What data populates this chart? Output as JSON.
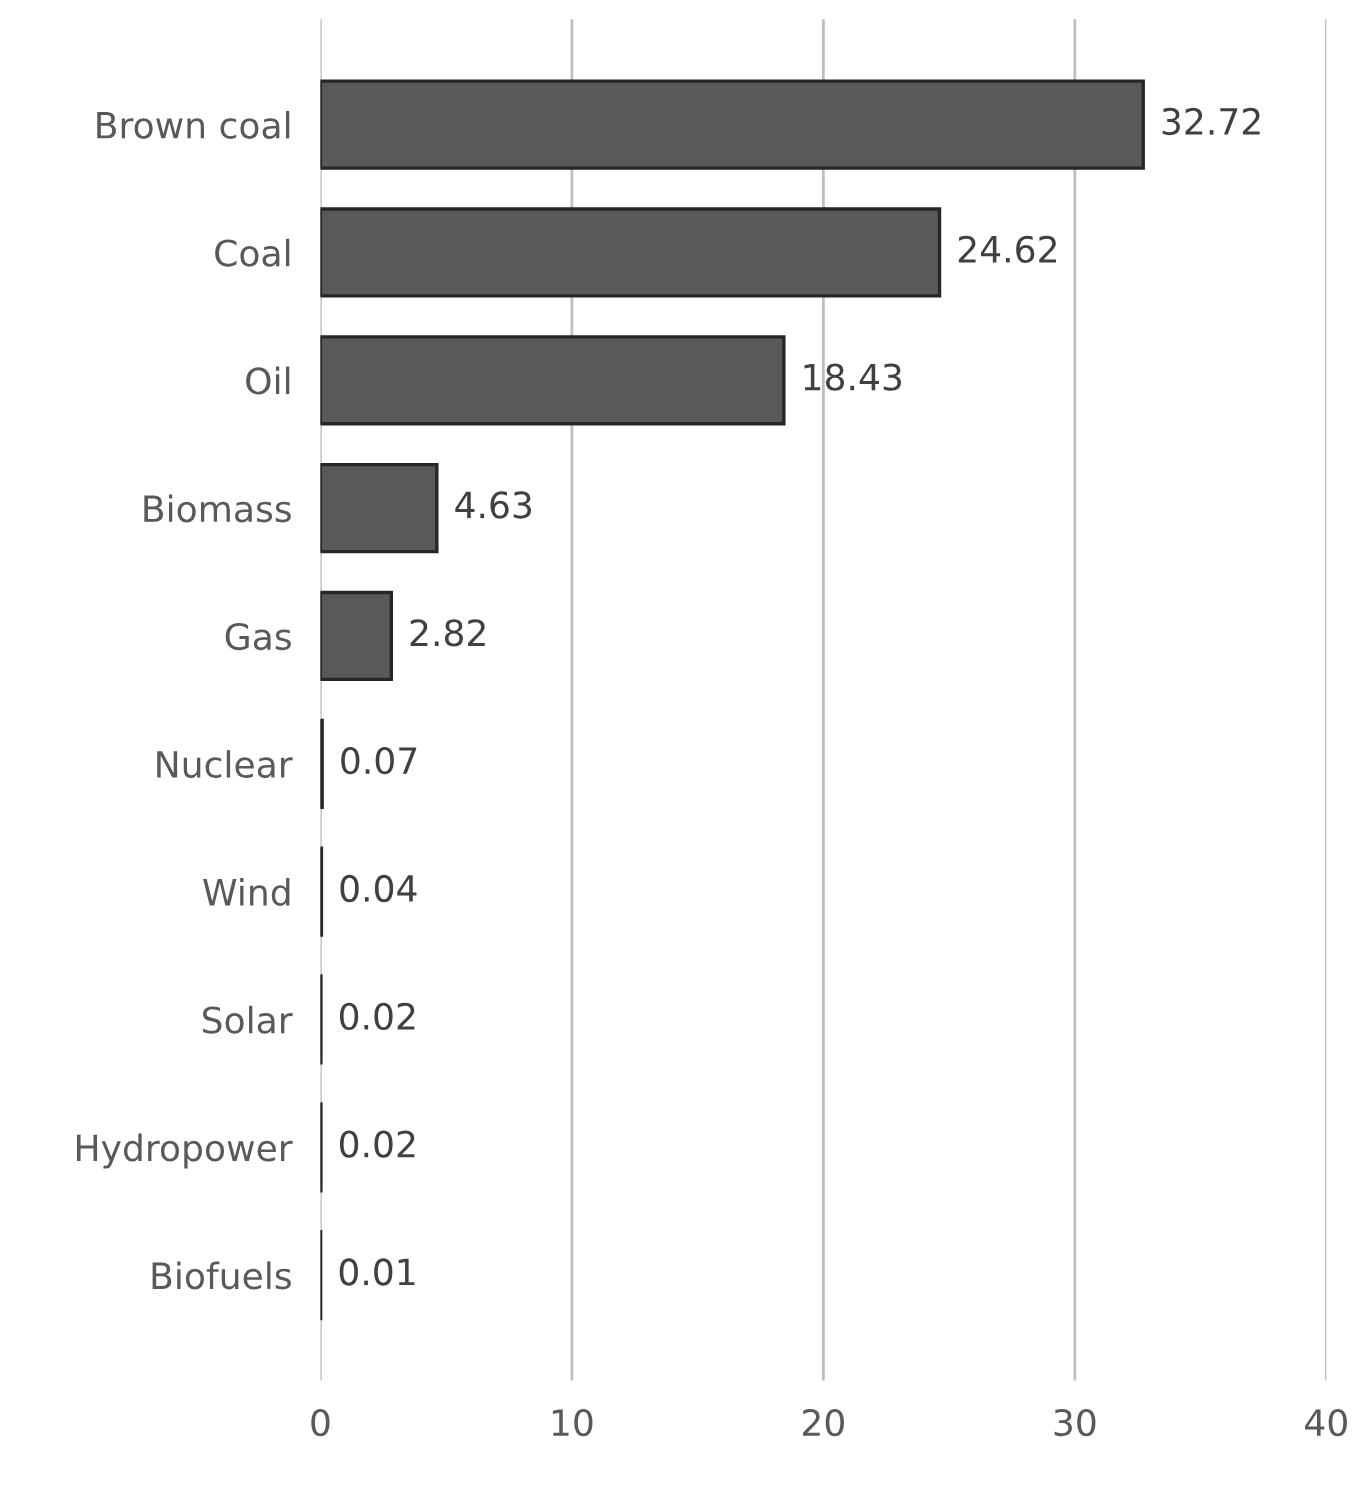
{
  "chart_data": {
    "type": "bar",
    "orientation": "horizontal",
    "categories": [
      "Brown coal",
      "Coal",
      "Oil",
      "Biomass",
      "Gas",
      "Nuclear",
      "Wind",
      "Solar",
      "Hydropower",
      "Biofuels"
    ],
    "values": [
      32.72,
      24.62,
      18.43,
      4.63,
      2.82,
      0.07,
      0.04,
      0.02,
      0.02,
      0.01
    ],
    "color": "#595959",
    "xlim": [
      0,
      40
    ],
    "xticks": [
      0,
      10,
      20,
      30,
      40
    ],
    "grid": "x",
    "data_labels": true
  }
}
